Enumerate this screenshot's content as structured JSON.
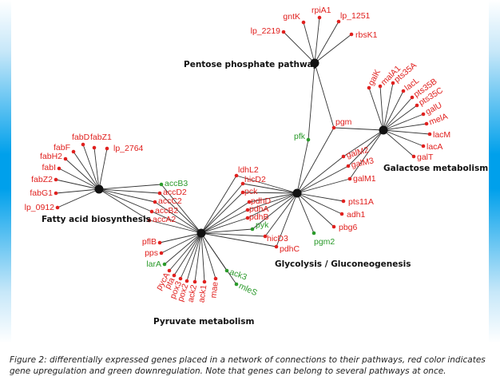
{
  "colors": {
    "up": "#e0201e",
    "down": "#2a9a2a",
    "hub": "#111111",
    "edge": "#333333"
  },
  "caption": "Figure 2: differentially expressed genes placed in a network of connections to their pathways, red color indicates gene upregulation and green downregulation. Note that genes can belong to several pathways at once.",
  "pathways": [
    {
      "id": "ppp",
      "label": "Pentose phosphate pathway"
    },
    {
      "id": "gal",
      "label": "Galactose metabolism"
    },
    {
      "id": "fab",
      "label": "Fatty acid biosynthesis"
    },
    {
      "id": "gly",
      "label": "Glycolysis / Gluconeogenesis"
    },
    {
      "id": "pyr",
      "label": "Pyruvate metabolism"
    }
  ],
  "genes": [
    {
      "label": "gntK",
      "reg": "up",
      "pathways": [
        "ppp"
      ]
    },
    {
      "label": "rpiA1",
      "reg": "up",
      "pathways": [
        "ppp"
      ]
    },
    {
      "label": "lp_1251",
      "reg": "up",
      "pathways": [
        "ppp"
      ]
    },
    {
      "label": "lp_2219",
      "reg": "up",
      "pathways": [
        "ppp"
      ]
    },
    {
      "label": "rbsK1",
      "reg": "up",
      "pathways": [
        "ppp"
      ]
    },
    {
      "label": "pgm",
      "reg": "up",
      "pathways": [
        "ppp",
        "gal",
        "gly"
      ]
    },
    {
      "label": "pfk",
      "reg": "down",
      "pathways": [
        "ppp",
        "gly"
      ]
    },
    {
      "label": "galK",
      "reg": "up",
      "pathways": [
        "gal"
      ]
    },
    {
      "label": "malA1",
      "reg": "up",
      "pathways": [
        "gal"
      ]
    },
    {
      "label": "pts35A",
      "reg": "up",
      "pathways": [
        "gal"
      ]
    },
    {
      "label": "lacL",
      "reg": "up",
      "pathways": [
        "gal"
      ]
    },
    {
      "label": "pts35B",
      "reg": "up",
      "pathways": [
        "gal"
      ]
    },
    {
      "label": "pts35C",
      "reg": "up",
      "pathways": [
        "gal"
      ]
    },
    {
      "label": "galU",
      "reg": "up",
      "pathways": [
        "gal"
      ]
    },
    {
      "label": "melA",
      "reg": "up",
      "pathways": [
        "gal"
      ]
    },
    {
      "label": "lacM",
      "reg": "up",
      "pathways": [
        "gal"
      ]
    },
    {
      "label": "lacA",
      "reg": "up",
      "pathways": [
        "gal"
      ]
    },
    {
      "label": "galT",
      "reg": "up",
      "pathways": [
        "gal"
      ]
    },
    {
      "label": "galM2",
      "reg": "up",
      "pathways": [
        "gal",
        "gly"
      ]
    },
    {
      "label": "galM3",
      "reg": "up",
      "pathways": [
        "gal",
        "gly"
      ]
    },
    {
      "label": "galM1",
      "reg": "up",
      "pathways": [
        "gal",
        "gly"
      ]
    },
    {
      "label": "fabD",
      "reg": "up",
      "pathways": [
        "fab"
      ]
    },
    {
      "label": "fabZ1",
      "reg": "up",
      "pathways": [
        "fab"
      ]
    },
    {
      "label": "fabF",
      "reg": "up",
      "pathways": [
        "fab"
      ]
    },
    {
      "label": "lp_2764",
      "reg": "up",
      "pathways": [
        "fab"
      ]
    },
    {
      "label": "fabH2",
      "reg": "up",
      "pathways": [
        "fab"
      ]
    },
    {
      "label": "fabI",
      "reg": "up",
      "pathways": [
        "fab"
      ]
    },
    {
      "label": "fabZ2",
      "reg": "up",
      "pathways": [
        "fab"
      ]
    },
    {
      "label": "fabG1",
      "reg": "up",
      "pathways": [
        "fab"
      ]
    },
    {
      "label": "lp_0912",
      "reg": "up",
      "pathways": [
        "fab"
      ]
    },
    {
      "label": "accB3",
      "reg": "down",
      "pathways": [
        "fab",
        "pyr"
      ]
    },
    {
      "label": "accD2",
      "reg": "up",
      "pathways": [
        "fab",
        "pyr"
      ]
    },
    {
      "label": "accC2",
      "reg": "up",
      "pathways": [
        "fab",
        "pyr"
      ]
    },
    {
      "label": "accB2",
      "reg": "up",
      "pathways": [
        "fab",
        "pyr"
      ]
    },
    {
      "label": "accA2",
      "reg": "up",
      "pathways": [
        "fab",
        "pyr"
      ]
    },
    {
      "label": "ldhL2",
      "reg": "up",
      "pathways": [
        "gly",
        "pyr"
      ]
    },
    {
      "label": "hicD2",
      "reg": "up",
      "pathways": [
        "gly",
        "pyr"
      ]
    },
    {
      "label": "pck",
      "reg": "up",
      "pathways": [
        "gly",
        "pyr"
      ]
    },
    {
      "label": "pdhD",
      "reg": "up",
      "pathways": [
        "gly",
        "pyr"
      ]
    },
    {
      "label": "pdhA",
      "reg": "up",
      "pathways": [
        "gly",
        "pyr"
      ]
    },
    {
      "label": "pdhB",
      "reg": "up",
      "pathways": [
        "gly",
        "pyr"
      ]
    },
    {
      "label": "pyk",
      "reg": "down",
      "pathways": [
        "gly",
        "pyr"
      ]
    },
    {
      "label": "hicD3",
      "reg": "up",
      "pathways": [
        "gly",
        "pyr"
      ]
    },
    {
      "label": "pdhC",
      "reg": "up",
      "pathways": [
        "gly",
        "pyr"
      ]
    },
    {
      "label": "pgm2",
      "reg": "down",
      "pathways": [
        "gly"
      ]
    },
    {
      "label": "pts11A",
      "reg": "up",
      "pathways": [
        "gly"
      ]
    },
    {
      "label": "adh1",
      "reg": "up",
      "pathways": [
        "gly"
      ]
    },
    {
      "label": "pbg6",
      "reg": "up",
      "pathways": [
        "gly"
      ]
    },
    {
      "label": "pflB",
      "reg": "up",
      "pathways": [
        "pyr"
      ]
    },
    {
      "label": "pps",
      "reg": "up",
      "pathways": [
        "pyr"
      ]
    },
    {
      "label": "larA",
      "reg": "down",
      "pathways": [
        "pyr"
      ]
    },
    {
      "label": "pycA",
      "reg": "up",
      "pathways": [
        "pyr"
      ]
    },
    {
      "label": "pta",
      "reg": "up",
      "pathways": [
        "pyr"
      ]
    },
    {
      "label": "pox3",
      "reg": "up",
      "pathways": [
        "pyr"
      ]
    },
    {
      "label": "pox2",
      "reg": "up",
      "pathways": [
        "pyr"
      ]
    },
    {
      "label": "ack2",
      "reg": "up",
      "pathways": [
        "pyr"
      ]
    },
    {
      "label": "ack1",
      "reg": "up",
      "pathways": [
        "pyr"
      ]
    },
    {
      "label": "mae",
      "reg": "up",
      "pathways": [
        "pyr"
      ]
    },
    {
      "label": "ack3",
      "reg": "down",
      "pathways": [
        "pyr"
      ]
    },
    {
      "label": "mleS",
      "reg": "down",
      "pathways": [
        "pyr"
      ]
    }
  ]
}
